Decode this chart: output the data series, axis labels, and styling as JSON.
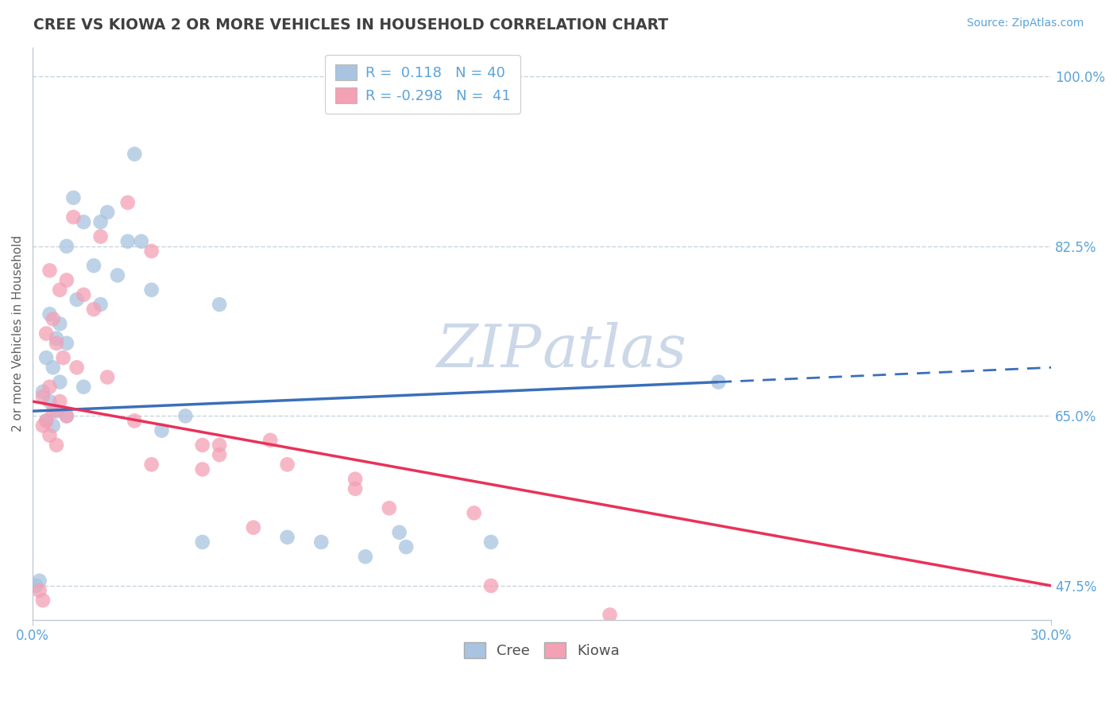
{
  "title": "CREE VS KIOWA 2 OR MORE VEHICLES IN HOUSEHOLD CORRELATION CHART",
  "source": "Source: ZipAtlas.com",
  "ylabel": "2 or more Vehicles in Household",
  "xlim": [
    0.0,
    30.0
  ],
  "ylim": [
    44.0,
    103.0
  ],
  "yticks": [
    47.5,
    65.0,
    82.5,
    100.0
  ],
  "xticks": [
    0.0,
    30.0
  ],
  "cree_R": 0.118,
  "cree_N": 40,
  "kiowa_R": -0.298,
  "kiowa_N": 41,
  "cree_color": "#a8c4e0",
  "kiowa_color": "#f4a0b5",
  "cree_line_color": "#3a6fba",
  "kiowa_line_color": "#e8325a",
  "tick_label_color": "#5ba3d9",
  "title_color": "#404040",
  "watermark_color": "#ccd8e8",
  "background_color": "#ffffff",
  "grid_color": "#c8d4dc",
  "legend_edge_color": "#cccccc",
  "bottom_legend_color": "#505050",
  "ylabel_color": "#606060",
  "spine_color": "#c0c8d0",
  "cree_points": [
    [
      3.0,
      92.0
    ],
    [
      1.2,
      87.5
    ],
    [
      2.2,
      86.0
    ],
    [
      1.5,
      85.0
    ],
    [
      2.0,
      85.0
    ],
    [
      2.8,
      83.0
    ],
    [
      3.2,
      83.0
    ],
    [
      1.0,
      82.5
    ],
    [
      1.8,
      80.5
    ],
    [
      2.5,
      79.5
    ],
    [
      3.5,
      78.0
    ],
    [
      1.3,
      77.0
    ],
    [
      2.0,
      76.5
    ],
    [
      0.5,
      75.5
    ],
    [
      0.8,
      74.5
    ],
    [
      0.7,
      73.0
    ],
    [
      1.0,
      72.5
    ],
    [
      0.4,
      71.0
    ],
    [
      0.6,
      70.0
    ],
    [
      0.8,
      68.5
    ],
    [
      1.5,
      68.0
    ],
    [
      0.3,
      67.5
    ],
    [
      0.5,
      66.5
    ],
    [
      0.7,
      65.5
    ],
    [
      1.0,
      65.0
    ],
    [
      0.4,
      64.5
    ],
    [
      0.6,
      64.0
    ],
    [
      3.8,
      63.5
    ],
    [
      5.5,
      76.5
    ],
    [
      4.5,
      65.0
    ],
    [
      5.0,
      52.0
    ],
    [
      7.5,
      52.5
    ],
    [
      8.5,
      52.0
    ],
    [
      9.8,
      50.5
    ],
    [
      11.0,
      51.5
    ],
    [
      13.5,
      52.0
    ],
    [
      0.2,
      48.0
    ],
    [
      0.1,
      47.5
    ],
    [
      20.2,
      68.5
    ],
    [
      10.8,
      53.0
    ]
  ],
  "kiowa_points": [
    [
      2.8,
      87.0
    ],
    [
      1.2,
      85.5
    ],
    [
      2.0,
      83.5
    ],
    [
      3.5,
      82.0
    ],
    [
      0.5,
      80.0
    ],
    [
      1.0,
      79.0
    ],
    [
      0.8,
      78.0
    ],
    [
      1.5,
      77.5
    ],
    [
      1.8,
      76.0
    ],
    [
      0.6,
      75.0
    ],
    [
      0.4,
      73.5
    ],
    [
      0.7,
      72.5
    ],
    [
      0.9,
      71.0
    ],
    [
      1.3,
      70.0
    ],
    [
      2.2,
      69.0
    ],
    [
      0.5,
      68.0
    ],
    [
      0.3,
      67.0
    ],
    [
      0.8,
      66.5
    ],
    [
      0.6,
      65.5
    ],
    [
      1.0,
      65.0
    ],
    [
      0.4,
      64.5
    ],
    [
      0.3,
      64.0
    ],
    [
      0.5,
      63.0
    ],
    [
      0.7,
      62.0
    ],
    [
      3.0,
      64.5
    ],
    [
      5.5,
      62.0
    ],
    [
      5.5,
      61.0
    ],
    [
      7.5,
      60.0
    ],
    [
      9.5,
      58.5
    ],
    [
      9.5,
      57.5
    ],
    [
      10.5,
      55.5
    ],
    [
      13.0,
      55.0
    ],
    [
      13.5,
      47.5
    ],
    [
      17.0,
      44.5
    ],
    [
      0.2,
      47.0
    ],
    [
      0.3,
      46.0
    ],
    [
      5.0,
      59.5
    ],
    [
      6.5,
      53.5
    ],
    [
      7.0,
      62.5
    ],
    [
      3.5,
      60.0
    ],
    [
      5.0,
      62.0
    ]
  ],
  "cree_line_x0": 0.0,
  "cree_line_y0": 65.5,
  "cree_line_x1": 20.2,
  "cree_line_y1": 68.5,
  "cree_dash_x0": 20.2,
  "cree_dash_y0": 68.5,
  "cree_dash_x1": 30.0,
  "cree_dash_y1": 70.0,
  "kiowa_line_x0": 0.0,
  "kiowa_line_y0": 66.5,
  "kiowa_line_x1": 30.0,
  "kiowa_line_y1": 47.5
}
